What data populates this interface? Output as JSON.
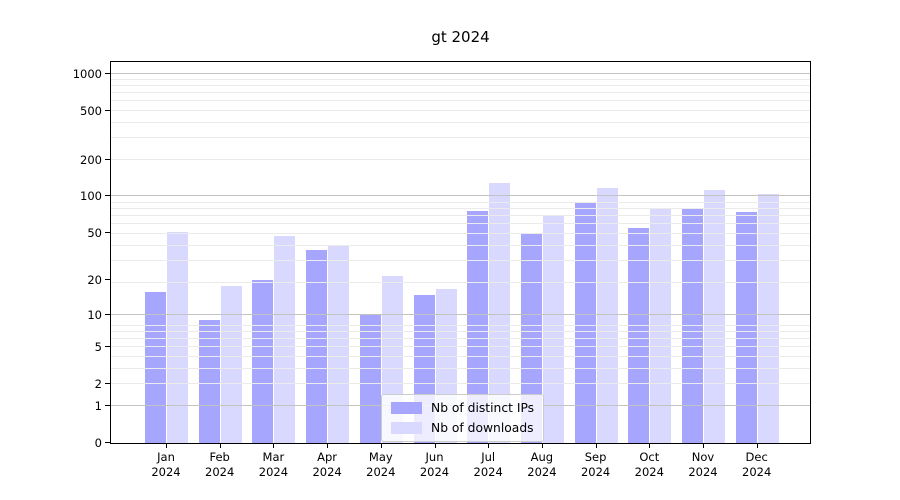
{
  "title": "gt 2024",
  "colors": {
    "bar_distinct_ips": "rgba(0,0,255,0.35)",
    "bar_downloads": "rgba(0,0,255,0.15)",
    "legend_swatch_ips": "#a6a6ff",
    "legend_swatch_downloads": "#d9d9ff",
    "grid_major": "#c3c3c3",
    "grid_minor": "#ebebeb",
    "axis": "#000000"
  },
  "legend": {
    "items": [
      {
        "label": "Nb of distinct IPs",
        "color": "#a6a6ff"
      },
      {
        "label": "Nb of downloads",
        "color": "#d9d9ff"
      }
    ],
    "position": "lower center"
  },
  "chart_data": {
    "type": "bar",
    "title": "gt 2024",
    "xlabel": "",
    "ylabel": "",
    "y_scale": "log1p",
    "ylim": [
      0,
      1250
    ],
    "grid": true,
    "legend_position": "lower center",
    "categories": [
      "Jan 2024",
      "Feb 2024",
      "Mar 2024",
      "Apr 2024",
      "May 2024",
      "Jun 2024",
      "Jul 2024",
      "Aug 2024",
      "Sep 2024",
      "Oct 2024",
      "Nov 2024",
      "Dec 2024"
    ],
    "x_tick_months": [
      "Jan",
      "Feb",
      "Mar",
      "Apr",
      "May",
      "Jun",
      "Jul",
      "Aug",
      "Sep",
      "Oct",
      "Nov",
      "Dec"
    ],
    "x_tick_year": "2024",
    "y_ticks": [
      0,
      1,
      2,
      5,
      10,
      20,
      50,
      100,
      200,
      500,
      1000
    ],
    "series": [
      {
        "name": "Nb of distinct IPs",
        "values": [
          16,
          9,
          20,
          36,
          10,
          15,
          76,
          50,
          89,
          55,
          80,
          74
        ]
      },
      {
        "name": "Nb of downloads",
        "values": [
          51,
          18,
          47,
          40,
          22,
          17,
          128,
          70,
          118,
          80,
          113,
          104
        ]
      }
    ]
  }
}
